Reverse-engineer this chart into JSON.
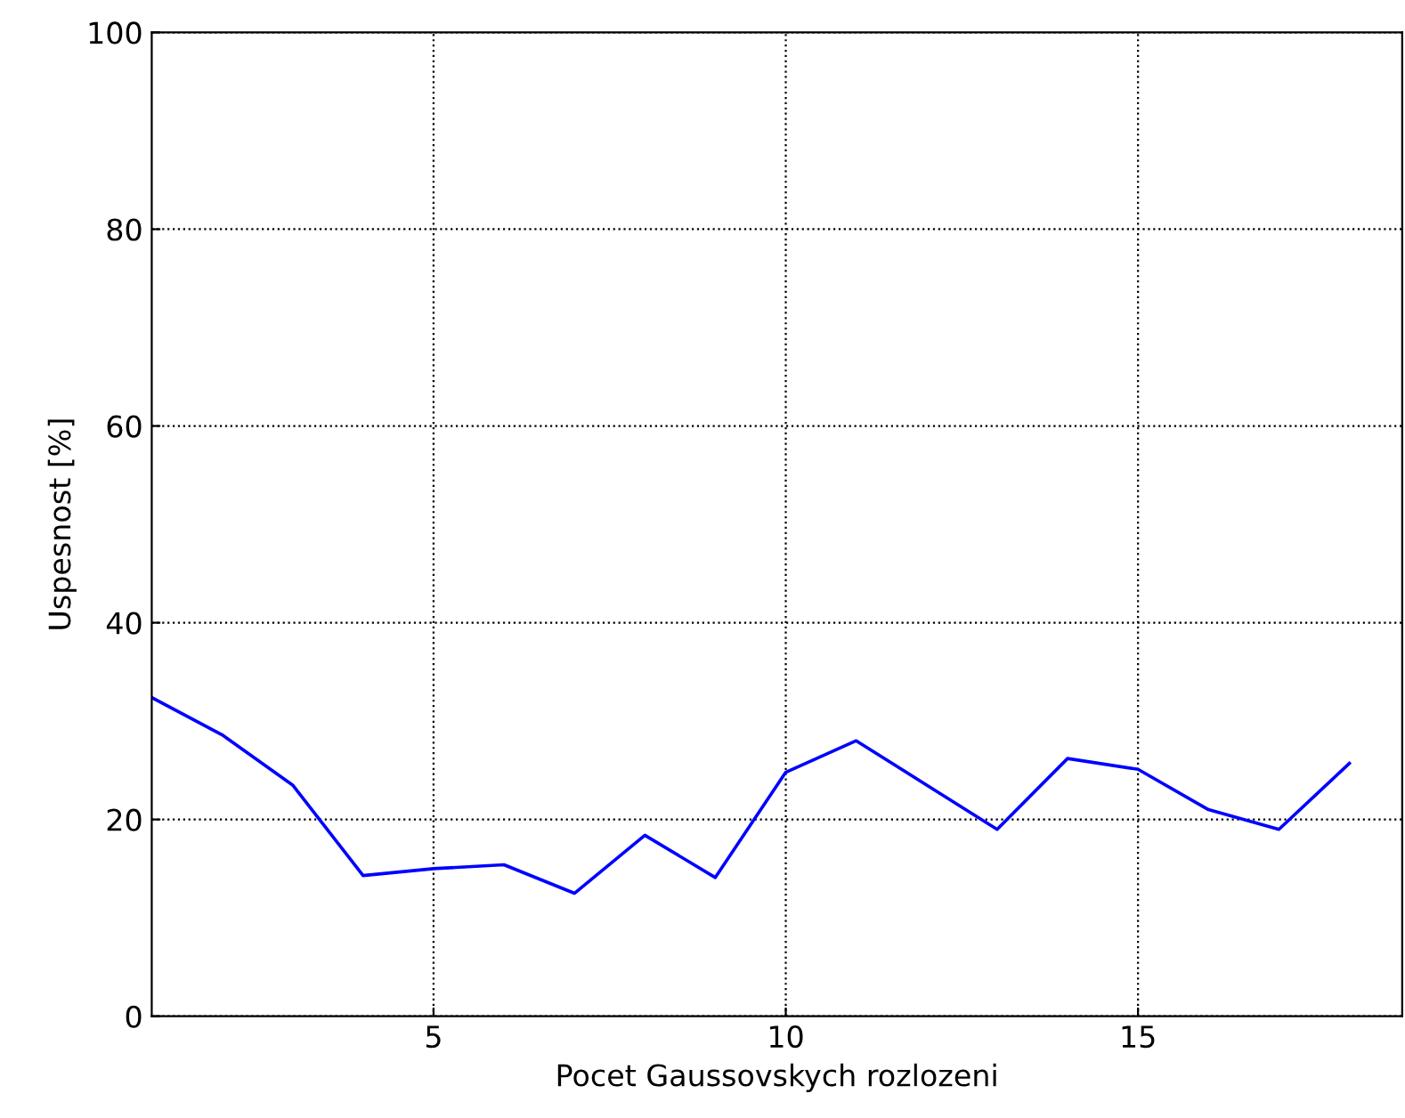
{
  "chart_data": {
    "type": "line",
    "xlabel": "Pocet Gaussovskych rozlozeni",
    "ylabel": "Uspesnost [%]",
    "x": [
      1,
      2,
      3,
      4,
      5,
      6,
      7,
      8,
      9,
      10,
      11,
      12,
      13,
      14,
      15,
      16,
      17,
      18
    ],
    "series": [
      {
        "color": "#0000ff",
        "values": [
          32.4,
          28.6,
          23.5,
          14.3,
          15.0,
          15.4,
          12.5,
          18.4,
          14.1,
          24.8,
          28.0,
          23.5,
          19.0,
          26.2,
          25.1,
          21.0,
          19.0,
          25.7
        ]
      }
    ],
    "xlim": [
      1,
      18.75
    ],
    "ylim": [
      0,
      100
    ],
    "xticks": [
      5,
      10,
      15
    ],
    "yticks": [
      0,
      20,
      40,
      60,
      80,
      100
    ],
    "grid": true,
    "line_style": "solid"
  }
}
